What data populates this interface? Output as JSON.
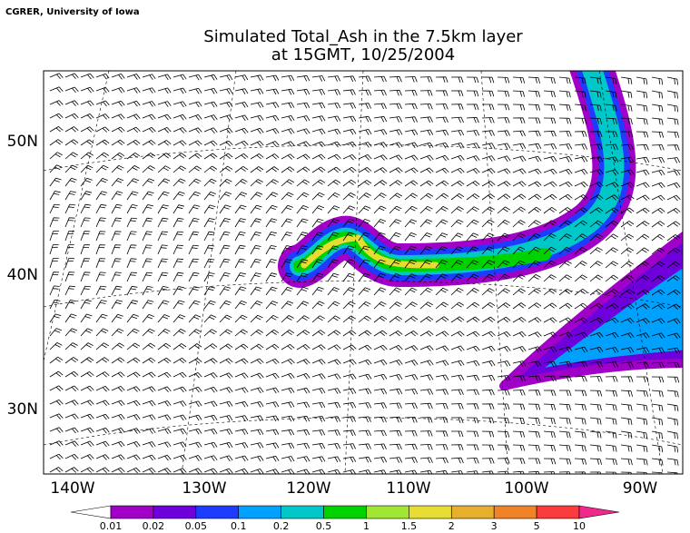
{
  "credit": "CGRER, University of Iowa",
  "title": [
    "Simulated Total_Ash in the 7.5km layer",
    "at 15GMT, 10/25/2004"
  ],
  "lon_labels": [
    "140W",
    "130W",
    "120W",
    "110W",
    "100W",
    "90W"
  ],
  "lat_labels": [
    "50N",
    "40N",
    "30N"
  ],
  "colorbar": {
    "levels": [
      0.01,
      0.02,
      0.05,
      0.1,
      0.2,
      0.5,
      1,
      1.5,
      2,
      3,
      5,
      10
    ],
    "colors": [
      "#a000c8",
      "#6e00dc",
      "#1e3cff",
      "#00a0ff",
      "#00c8c8",
      "#00d200",
      "#a0e632",
      "#e6dc32",
      "#e6af2d",
      "#f08228",
      "#fa3c3c",
      "#f0288c"
    ]
  }
}
